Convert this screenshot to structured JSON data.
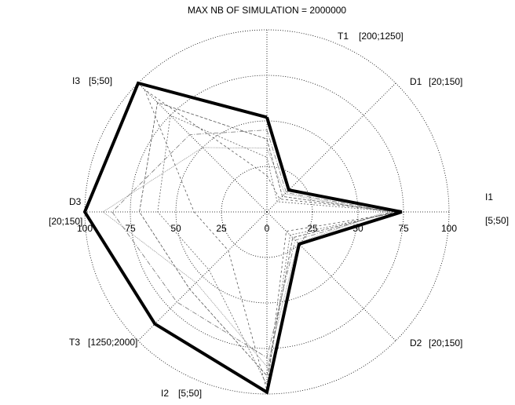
{
  "chart_data": {
    "type": "radar",
    "title": "MAX NB OF SIMULATION = 2000000",
    "axes": [
      {
        "name": "T1",
        "range": "[200;1250]"
      },
      {
        "name": "D1",
        "range": "[20;150]"
      },
      {
        "name": "I1",
        "range": "[5;50]"
      },
      {
        "name": "D2",
        "range": "[20;150]"
      },
      {
        "name": "I2",
        "range": "[5;50]"
      },
      {
        "name": "T3",
        "range": "[1250;2000]"
      },
      {
        "name": "D3",
        "range": "[20;150]"
      },
      {
        "name": "I3",
        "range": "[5;50]"
      }
    ],
    "rlim": [
      0,
      100
    ],
    "rticks": [
      0,
      25,
      50,
      75,
      100
    ],
    "grid": true,
    "series": [
      {
        "color": "#555555",
        "values": [
          40,
          12,
          70,
          20,
          90,
          60,
          70,
          85
        ]
      },
      {
        "color": "#666666",
        "values": [
          30,
          8,
          72,
          18,
          95,
          45,
          60,
          75
        ]
      },
      {
        "color": "#777777",
        "values": [
          45,
          15,
          68,
          22,
          80,
          70,
          85,
          60
        ]
      },
      {
        "color": "#555555",
        "values": [
          20,
          10,
          74,
          15,
          98,
          30,
          40,
          95
        ]
      },
      {
        "color": "#888888",
        "values": [
          35,
          14,
          65,
          24,
          85,
          55,
          90,
          50
        ]
      },
      {
        "color": "#000000",
        "values": [
          52,
          17,
          74,
          25,
          99,
          87,
          100,
          100
        ]
      }
    ]
  }
}
